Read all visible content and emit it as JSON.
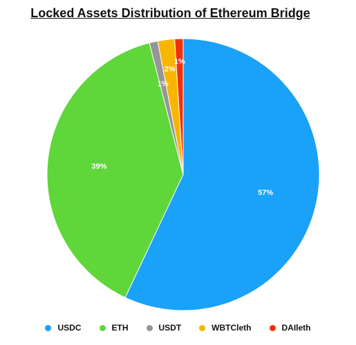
{
  "chart_data": {
    "type": "pie",
    "title": "Locked Assets Distribution of Ethereum Bridge",
    "slices": [
      {
        "name": "USDC",
        "value": 57,
        "label": "57%",
        "color": "#1aa1f8"
      },
      {
        "name": "ETH",
        "value": 39,
        "label": "39%",
        "color": "#5fd639"
      },
      {
        "name": "USDT",
        "value": 1,
        "label": "1%",
        "color": "#969696"
      },
      {
        "name": "WBTCleth",
        "value": 2,
        "label": "2%",
        "color": "#f8b500"
      },
      {
        "name": "DAIleth",
        "value": 1,
        "label": "1%",
        "color": "#f3300e"
      }
    ],
    "legend_position": "bottom",
    "start": "top",
    "direction": "clockwise"
  }
}
